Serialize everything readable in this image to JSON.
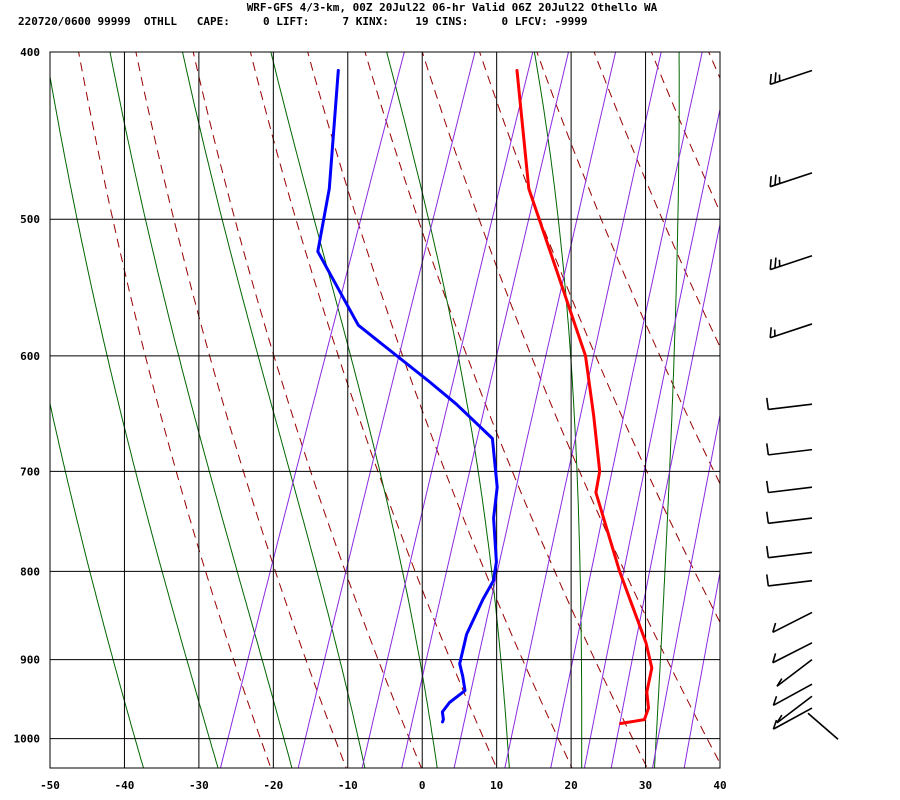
{
  "header": {
    "title_line": "WRF-GFS 4/3-km, 00Z 20Jul22 06-hr Valid 06Z 20Jul22 Othello WA",
    "info_line": "220720/0600 99999  OTHLL   CAPE:     0 LIFT:     7 KINX:    19 CINS:     0 LFCV: -9999"
  },
  "chart_data": {
    "type": "line",
    "chart_kind": "skew-T log-P sounding",
    "x_axis": {
      "range": [
        -50,
        40
      ],
      "ticks": [
        "-50",
        "-40",
        "-30",
        "-20",
        "-10",
        "0",
        "10",
        "20",
        "30",
        "40"
      ]
    },
    "y_axis": {
      "scale": "log",
      "range": [
        400,
        1040
      ],
      "ticks": [
        "400",
        "500",
        "600",
        "700",
        "800",
        "900",
        "1000"
      ]
    },
    "grid": true,
    "colors": {
      "temperature": "#ff0000",
      "dewpoint": "#0000ff",
      "dry_adiabat": "#990000",
      "moist_adiabat": "#006600",
      "mixing_ratio": "#8a2be2",
      "grid": "#000000"
    },
    "series": [
      {
        "key": "temperature",
        "points": [
          [
            410,
            -21
          ],
          [
            480,
            -13.7
          ],
          [
            540,
            -5.4
          ],
          [
            600,
            2
          ],
          [
            650,
            6
          ],
          [
            700,
            9.5
          ],
          [
            720,
            10
          ],
          [
            800,
            17
          ],
          [
            880,
            24
          ],
          [
            910,
            26
          ],
          [
            940,
            26.5
          ],
          [
            960,
            27.5
          ],
          [
            975,
            27.5
          ],
          [
            980,
            24.5
          ]
        ]
      },
      {
        "key": "dewpoint",
        "points": [
          [
            410,
            -45
          ],
          [
            480,
            -40.5
          ],
          [
            522,
            -39
          ],
          [
            576,
            -30
          ],
          [
            620,
            -18
          ],
          [
            640,
            -13
          ],
          [
            670,
            -6.5
          ],
          [
            715,
            -3.5
          ],
          [
            745,
            -2.5
          ],
          [
            790,
            0
          ],
          [
            810,
            0.5
          ],
          [
            830,
            0
          ],
          [
            870,
            -0.5
          ],
          [
            905,
            0
          ],
          [
            920,
            1
          ],
          [
            938,
            2
          ],
          [
            953,
            0.5
          ],
          [
            965,
            0
          ],
          [
            975,
            0.5
          ],
          [
            978,
            0.5
          ]
        ]
      }
    ],
    "wind_barbs": [
      {
        "p": 410,
        "barbs": 3
      },
      {
        "p": 470,
        "barbs": 3
      },
      {
        "p": 525,
        "barbs": 3
      },
      {
        "p": 575,
        "barbs": 2
      },
      {
        "p": 640,
        "barbs": 1
      },
      {
        "p": 680,
        "barbs": 1
      },
      {
        "p": 715,
        "barbs": 1
      },
      {
        "p": 745,
        "barbs": 1
      },
      {
        "p": 780,
        "barbs": 1
      },
      {
        "p": 810,
        "barbs": 1
      },
      {
        "p": 845,
        "barbs": 1
      },
      {
        "p": 880,
        "barbs": 1
      },
      {
        "p": 900,
        "barbs": 1
      },
      {
        "p": 930,
        "barbs": 1
      },
      {
        "p": 945,
        "barbs": 1
      },
      {
        "p": 960,
        "barbs": 1
      },
      {
        "p": 985,
        "barbs": 0
      }
    ]
  }
}
